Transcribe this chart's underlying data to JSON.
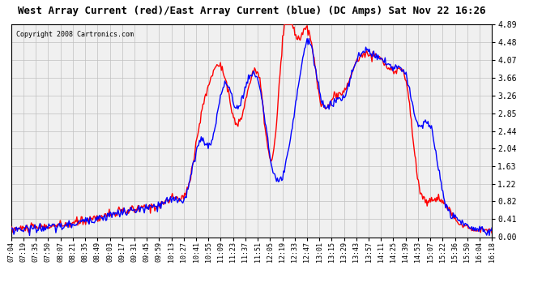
{
  "title": "West Array Current (red)/East Array Current (blue) (DC Amps) Sat Nov 22 16:26",
  "copyright": "Copyright 2008 Cartronics.com",
  "ylabel_right": true,
  "yticks": [
    0.0,
    0.41,
    0.82,
    1.22,
    1.63,
    2.04,
    2.44,
    2.85,
    3.26,
    3.66,
    4.07,
    4.48,
    4.89
  ],
  "background_color": "#ffffff",
  "grid_color": "#c0c0c0",
  "plot_bg_color": "#f0f0f0",
  "x_labels": [
    "07:04",
    "07:19",
    "07:35",
    "07:50",
    "08:07",
    "08:21",
    "08:35",
    "08:49",
    "09:03",
    "09:17",
    "09:31",
    "09:45",
    "09:59",
    "10:13",
    "10:27",
    "10:41",
    "10:55",
    "11:09",
    "11:23",
    "11:37",
    "11:51",
    "12:05",
    "12:19",
    "12:33",
    "12:47",
    "13:01",
    "13:15",
    "13:29",
    "13:43",
    "13:57",
    "14:11",
    "14:25",
    "14:39",
    "14:53",
    "15:07",
    "15:22",
    "15:36",
    "15:50",
    "16:04",
    "16:18"
  ],
  "line_red_color": "#ff0000",
  "line_blue_color": "#0000ff",
  "line_width": 1.0
}
